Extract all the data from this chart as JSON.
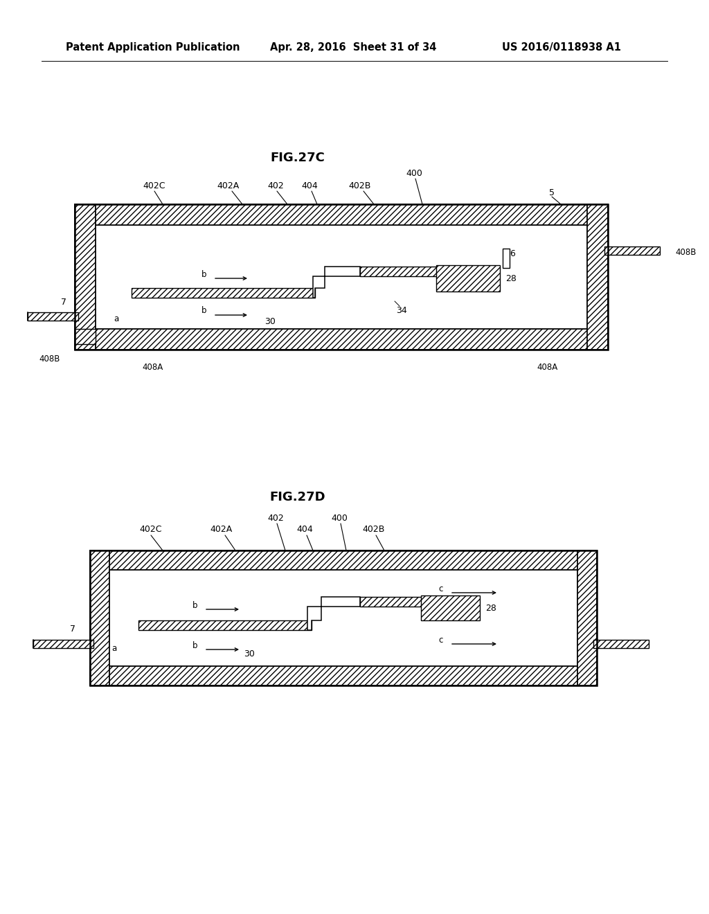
{
  "bg_color": "#ffffff",
  "line_color": "#000000",
  "header_left": "Patent Application Publication",
  "header_center": "Apr. 28, 2016  Sheet 31 of 34",
  "header_right": "US 2016/0118938 A1",
  "fig_title_C": "FIG.27C",
  "fig_title_D": "FIG.27D",
  "header_fontsize": 10.5,
  "title_fontsize": 13
}
